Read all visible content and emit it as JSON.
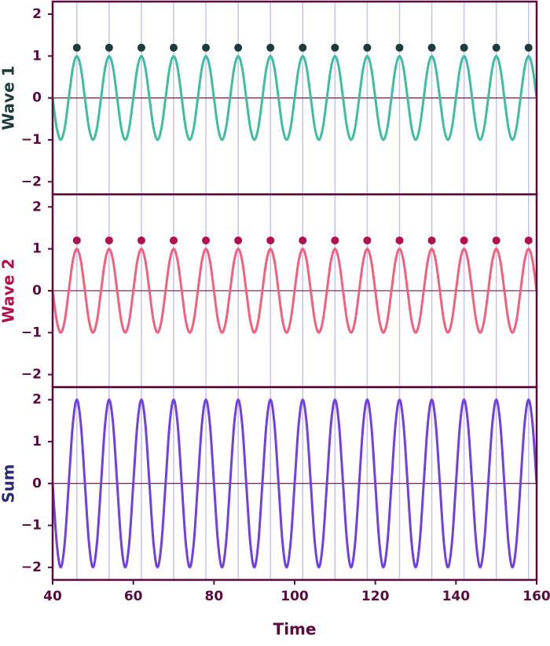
{
  "chart_data": [
    {
      "type": "line",
      "ylabel": "Wave 1",
      "ylabel_color": "#1c3b3b",
      "xlim": [
        40,
        160
      ],
      "ylim": [
        -2.3,
        2.3
      ],
      "yticks": [
        {
          "value": -2,
          "label": "−2"
        },
        {
          "value": -1,
          "label": "−1"
        },
        0,
        1,
        2
      ],
      "hline": 0,
      "vlines": [
        46,
        54,
        62,
        70,
        78,
        86,
        94,
        102,
        110,
        118,
        126,
        134,
        142,
        150,
        158
      ],
      "x": [
        40,
        41,
        42,
        43,
        44,
        45,
        46,
        47,
        48,
        49,
        50,
        51,
        52,
        53,
        54,
        55,
        56,
        57,
        58,
        59,
        60,
        61,
        62,
        63,
        64,
        65,
        66,
        67,
        68,
        69,
        70,
        71,
        72,
        73,
        74,
        75,
        76,
        77,
        78,
        79,
        80,
        81,
        82,
        83,
        84,
        85,
        86,
        87,
        88,
        89,
        90,
        91,
        92,
        93,
        94,
        95,
        96,
        97,
        98,
        99,
        100,
        101,
        102,
        103,
        104,
        105,
        106,
        107,
        108,
        109,
        110,
        111,
        112,
        113,
        114,
        115,
        116,
        117,
        118,
        119,
        120,
        121,
        122,
        123,
        124,
        125,
        126,
        127,
        128,
        129,
        130,
        131,
        132,
        133,
        134,
        135,
        136,
        137,
        138,
        139,
        140,
        141,
        142,
        143,
        144,
        145,
        146,
        147,
        148,
        149,
        150,
        151,
        152,
        153,
        154,
        155,
        156,
        157,
        158,
        159,
        160
      ],
      "series": [
        {
          "color": "#3dbf9f",
          "values": [
            0,
            -0.71,
            -1,
            -0.71,
            0,
            0.71,
            1,
            0.71,
            0,
            -0.71,
            -1,
            -0.71,
            0,
            0.71,
            1,
            0.71,
            0,
            -0.71,
            -1,
            -0.71,
            0,
            0.71,
            1,
            0.71,
            0,
            -0.71,
            -1,
            -0.71,
            0,
            0.71,
            1,
            0.71,
            0,
            -0.71,
            -1,
            -0.71,
            0,
            0.71,
            1,
            0.71,
            0,
            -0.71,
            -1,
            -0.71,
            0,
            0.71,
            1,
            0.71,
            0,
            -0.71,
            -1,
            -0.71,
            0,
            0.71,
            1,
            0.71,
            0,
            -0.71,
            -1,
            -0.71,
            0,
            0.71,
            1,
            0.71,
            0,
            -0.71,
            -1,
            -0.71,
            0,
            0.71,
            1,
            0.71,
            0,
            -0.71,
            -1,
            -0.71,
            0,
            0.71,
            1,
            0.71,
            0,
            -0.71,
            -1,
            -0.71,
            0,
            0.71,
            1,
            0.71,
            0,
            -0.71,
            -1,
            -0.71,
            0,
            0.71,
            1,
            0.71,
            0,
            -0.71,
            -1,
            -0.71,
            0,
            0.71,
            1,
            0.71,
            0,
            -0.71,
            -1,
            -0.71,
            0,
            0.71,
            1,
            0.71,
            0,
            -0.71,
            -1,
            -0.71,
            0,
            0.71,
            1,
            0.71,
            0
          ]
        }
      ],
      "markers": {
        "color": "#1c3b3b",
        "x": [
          46,
          54,
          62,
          70,
          78,
          86,
          94,
          102,
          110,
          118,
          126,
          134,
          142,
          150,
          158
        ],
        "y": [
          1.2,
          1.2,
          1.2,
          1.2,
          1.2,
          1.2,
          1.2,
          1.2,
          1.2,
          1.2,
          1.2,
          1.2,
          1.2,
          1.2,
          1.2
        ]
      }
    },
    {
      "type": "line",
      "ylabel": "Wave 2",
      "ylabel_color": "#b3104c",
      "xlim": [
        40,
        160
      ],
      "ylim": [
        -2.3,
        2.3
      ],
      "yticks": [
        {
          "value": -2,
          "label": "−2"
        },
        {
          "value": -1,
          "label": "−1"
        },
        0,
        1,
        2
      ],
      "hline": 0,
      "vlines": [
        46,
        54,
        62,
        70,
        78,
        86,
        94,
        102,
        110,
        118,
        126,
        134,
        142,
        150,
        158
      ],
      "x": [
        40,
        41,
        42,
        43,
        44,
        45,
        46,
        47,
        48,
        49,
        50,
        51,
        52,
        53,
        54,
        55,
        56,
        57,
        58,
        59,
        60,
        61,
        62,
        63,
        64,
        65,
        66,
        67,
        68,
        69,
        70,
        71,
        72,
        73,
        74,
        75,
        76,
        77,
        78,
        79,
        80,
        81,
        82,
        83,
        84,
        85,
        86,
        87,
        88,
        89,
        90,
        91,
        92,
        93,
        94,
        95,
        96,
        97,
        98,
        99,
        100,
        101,
        102,
        103,
        104,
        105,
        106,
        107,
        108,
        109,
        110,
        111,
        112,
        113,
        114,
        115,
        116,
        117,
        118,
        119,
        120,
        121,
        122,
        123,
        124,
        125,
        126,
        127,
        128,
        129,
        130,
        131,
        132,
        133,
        134,
        135,
        136,
        137,
        138,
        139,
        140,
        141,
        142,
        143,
        144,
        145,
        146,
        147,
        148,
        149,
        150,
        151,
        152,
        153,
        154,
        155,
        156,
        157,
        158,
        159,
        160
      ],
      "series": [
        {
          "color": "#f2607e",
          "values": [
            0,
            -0.71,
            -1,
            -0.71,
            0,
            0.71,
            1,
            0.71,
            0,
            -0.71,
            -1,
            -0.71,
            0,
            0.71,
            1,
            0.71,
            0,
            -0.71,
            -1,
            -0.71,
            0,
            0.71,
            1,
            0.71,
            0,
            -0.71,
            -1,
            -0.71,
            0,
            0.71,
            1,
            0.71,
            0,
            -0.71,
            -1,
            -0.71,
            0,
            0.71,
            1,
            0.71,
            0,
            -0.71,
            -1,
            -0.71,
            0,
            0.71,
            1,
            0.71,
            0,
            -0.71,
            -1,
            -0.71,
            0,
            0.71,
            1,
            0.71,
            0,
            -0.71,
            -1,
            -0.71,
            0,
            0.71,
            1,
            0.71,
            0,
            -0.71,
            -1,
            -0.71,
            0,
            0.71,
            1,
            0.71,
            0,
            -0.71,
            -1,
            -0.71,
            0,
            0.71,
            1,
            0.71,
            0,
            -0.71,
            -1,
            -0.71,
            0,
            0.71,
            1,
            0.71,
            0,
            -0.71,
            -1,
            -0.71,
            0,
            0.71,
            1,
            0.71,
            0,
            -0.71,
            -1,
            -0.71,
            0,
            0.71,
            1,
            0.71,
            0,
            -0.71,
            -1,
            -0.71,
            0,
            0.71,
            1,
            0.71,
            0,
            -0.71,
            -1,
            -0.71,
            0,
            0.71,
            1,
            0.71,
            0
          ]
        }
      ],
      "markers": {
        "color": "#b3104c",
        "x": [
          46,
          54,
          62,
          70,
          78,
          86,
          94,
          102,
          110,
          118,
          126,
          134,
          142,
          150,
          158
        ],
        "y": [
          1.2,
          1.2,
          1.2,
          1.2,
          1.2,
          1.2,
          1.2,
          1.2,
          1.2,
          1.2,
          1.2,
          1.2,
          1.2,
          1.2,
          1.2
        ]
      }
    },
    {
      "type": "line",
      "ylabel": "Sum",
      "ylabel_color": "#2b2b75",
      "xlabel": "Time",
      "xlim": [
        40,
        160
      ],
      "ylim": [
        -2.3,
        2.3
      ],
      "yticks": [
        {
          "value": -2,
          "label": "−2"
        },
        {
          "value": -1,
          "label": "−1"
        },
        0,
        1,
        2
      ],
      "xticks": [
        40,
        60,
        80,
        100,
        120,
        140,
        160
      ],
      "hline": 0,
      "vlines": [
        46,
        54,
        62,
        70,
        78,
        86,
        94,
        102,
        110,
        118,
        126,
        134,
        142,
        150,
        158
      ],
      "x": [
        40,
        41,
        42,
        43,
        44,
        45,
        46,
        47,
        48,
        49,
        50,
        51,
        52,
        53,
        54,
        55,
        56,
        57,
        58,
        59,
        60,
        61,
        62,
        63,
        64,
        65,
        66,
        67,
        68,
        69,
        70,
        71,
        72,
        73,
        74,
        75,
        76,
        77,
        78,
        79,
        80,
        81,
        82,
        83,
        84,
        85,
        86,
        87,
        88,
        89,
        90,
        91,
        92,
        93,
        94,
        95,
        96,
        97,
        98,
        99,
        100,
        101,
        102,
        103,
        104,
        105,
        106,
        107,
        108,
        109,
        110,
        111,
        112,
        113,
        114,
        115,
        116,
        117,
        118,
        119,
        120,
        121,
        122,
        123,
        124,
        125,
        126,
        127,
        128,
        129,
        130,
        131,
        132,
        133,
        134,
        135,
        136,
        137,
        138,
        139,
        140,
        141,
        142,
        143,
        144,
        145,
        146,
        147,
        148,
        149,
        150,
        151,
        152,
        153,
        154,
        155,
        156,
        157,
        158,
        159,
        160
      ],
      "series": [
        {
          "color": "#7040e0",
          "values": [
            0,
            -1.41,
            -2,
            -1.41,
            0,
            1.41,
            2,
            1.41,
            0,
            -1.41,
            -2,
            -1.41,
            0,
            1.41,
            2,
            1.41,
            0,
            -1.41,
            -2,
            -1.41,
            0,
            1.41,
            2,
            1.41,
            0,
            -1.41,
            -2,
            -1.41,
            0,
            1.41,
            2,
            1.41,
            0,
            -1.41,
            -2,
            -1.41,
            0,
            1.41,
            2,
            1.41,
            0,
            -1.41,
            -2,
            -1.41,
            0,
            1.41,
            2,
            1.41,
            0,
            -1.41,
            -2,
            -1.41,
            0,
            1.41,
            2,
            1.41,
            0,
            -1.41,
            -2,
            -1.41,
            0,
            1.41,
            2,
            1.41,
            0,
            -1.41,
            -2,
            -1.41,
            0,
            1.41,
            2,
            1.41,
            0,
            -1.41,
            -2,
            -1.41,
            0,
            1.41,
            2,
            1.41,
            0,
            -1.41,
            -2,
            -1.41,
            0,
            1.41,
            2,
            1.41,
            0,
            -1.41,
            -2,
            -1.41,
            0,
            1.41,
            2,
            1.41,
            0,
            -1.41,
            -2,
            -1.41,
            0,
            1.41,
            2,
            1.41,
            0,
            -1.41,
            -2,
            -1.41,
            0,
            1.41,
            2,
            1.41,
            0,
            -1.41,
            -2,
            -1.41,
            0,
            1.41,
            2,
            1.41,
            0
          ]
        }
      ]
    }
  ]
}
